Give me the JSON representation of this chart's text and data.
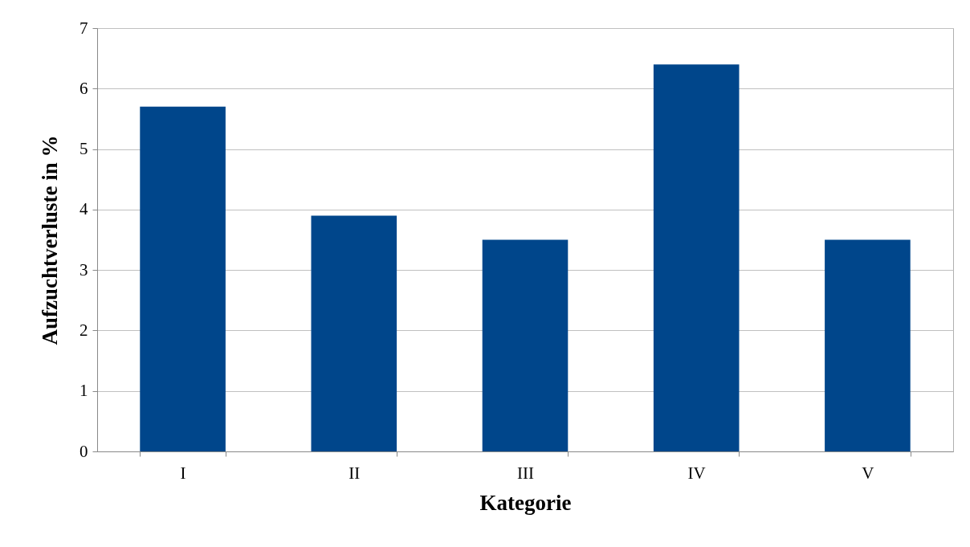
{
  "chart_data": {
    "type": "bar",
    "xlabel": "Kategorie",
    "ylabel": "Aufzuchtverluste in %",
    "categories": [
      "I",
      "II",
      "III",
      "IV",
      "V"
    ],
    "values": [
      5.7,
      3.9,
      3.5,
      6.4,
      3.5
    ],
    "color": "#00468b",
    "ylim": [
      0,
      7
    ],
    "yticks": [
      0,
      1,
      2,
      3,
      4,
      5,
      6,
      7
    ],
    "grid": "y"
  }
}
